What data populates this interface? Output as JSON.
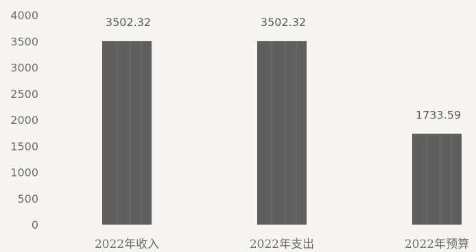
{
  "chart_data": {
    "type": "bar",
    "categories": [
      "2022年收入",
      "2022年支出",
      "2022年预算"
    ],
    "values": [
      3502.32,
      3502.32,
      1733.59
    ],
    "data_labels": [
      "3502.32",
      "3502.32",
      "1733.59"
    ],
    "ylim": [
      0,
      4000
    ],
    "yticks": [
      "0",
      "500",
      "1000",
      "1500",
      "2000",
      "2500",
      "3000",
      "3500",
      "4000"
    ],
    "grid": false,
    "bar_color": "#5f5f5f",
    "title": "",
    "xlabel": "",
    "ylabel": ""
  }
}
